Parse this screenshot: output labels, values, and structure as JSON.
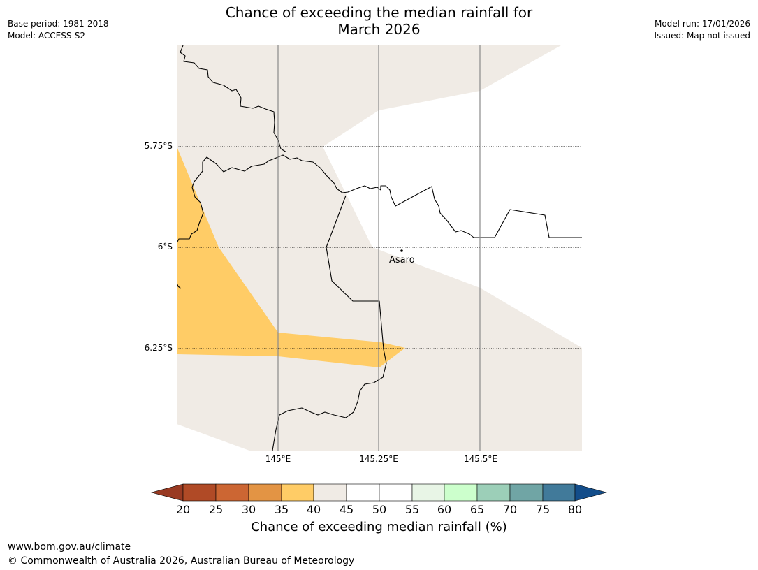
{
  "title": {
    "line1": "Chance of exceeding the median rainfall for",
    "line2": "March 2026"
  },
  "meta_left": {
    "base_period": "Base period: 1981-2018",
    "model": "Model: ACCESS-S2"
  },
  "meta_right": {
    "model_run": "Model run: 17/01/2026",
    "issued": "Issued: Map not issued"
  },
  "map": {
    "lat_labels": [
      "5.75°S",
      "6°S",
      "6.25°S"
    ],
    "lon_labels": [
      "145°E",
      "145.25°E",
      "145.5°E"
    ],
    "place": "Asaro"
  },
  "colorbar": {
    "ticks": [
      "20",
      "25",
      "30",
      "35",
      "40",
      "45",
      "50",
      "55",
      "60",
      "65",
      "70",
      "75",
      "80"
    ],
    "label": "Chance of exceeding median rainfall (%)",
    "colors": {
      "below_20": "#993a22",
      "20_25": "#b04a26",
      "25_30": "#cc6633",
      "30_35": "#e39444",
      "35_40": "#ffcc66",
      "40_45": "#f0ebe5",
      "45_50": "#ffffff",
      "50_55": "#ffffff",
      "55_60": "#e8f5e6",
      "60_65": "#ccffcc",
      "65_70": "#9ccfb8",
      "70_75": "#70a5a5",
      "75_80": "#417a9a",
      "above_80": "#134d8a"
    }
  },
  "footer": {
    "url": "www.bom.gov.au/climate",
    "copyright": "© Commonwealth of Australia 2026, Australian Bureau of Meteorology"
  }
}
